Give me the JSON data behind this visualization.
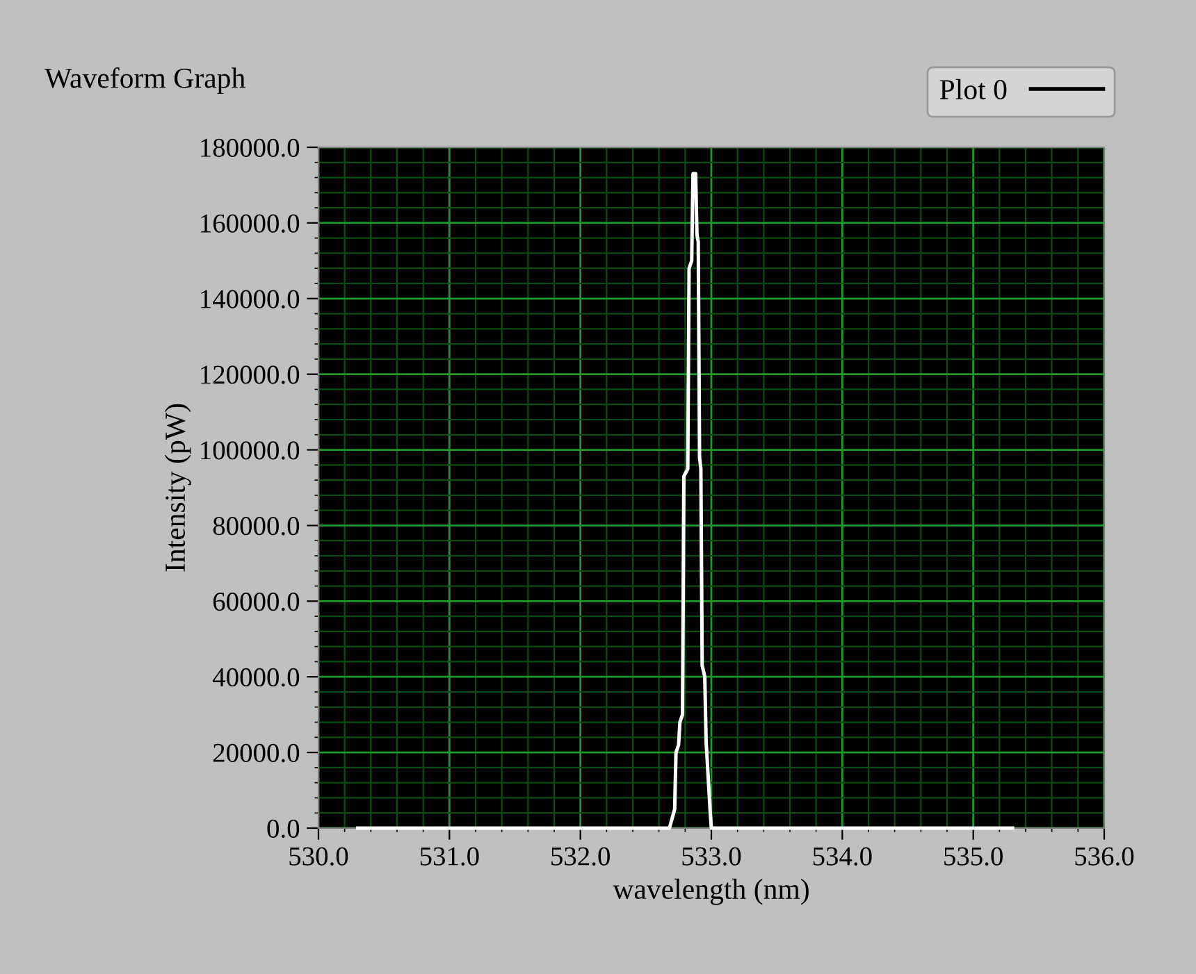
{
  "chart_data": {
    "type": "line",
    "title": "Waveform Graph",
    "xlabel": "wavelength (nm)",
    "ylabel": "Intensity (pW)",
    "series": [
      {
        "name": "Plot 0",
        "color": "#ffffff",
        "x": [
          530.3,
          531.0,
          532.0,
          532.6,
          532.68,
          532.72,
          532.73,
          532.75,
          532.76,
          532.78,
          532.79,
          532.82,
          532.83,
          532.85,
          532.86,
          532.88,
          532.89,
          532.9,
          532.91,
          532.92,
          532.93,
          532.95,
          532.96,
          532.99,
          533.0,
          533.5,
          534.5,
          535.3
        ],
        "values": [
          0,
          0,
          0,
          0,
          0,
          5000,
          20000,
          22000,
          28000,
          30000,
          93000,
          95000,
          148000,
          150000,
          173000,
          173000,
          157000,
          155000,
          98000,
          95000,
          43000,
          40000,
          23000,
          5000,
          0,
          0,
          0,
          0
        ]
      }
    ],
    "xlim": [
      530,
      536
    ],
    "xticks": [
      {
        "value": 530,
        "label": "530.0"
      },
      {
        "value": 530.2,
        "label": null
      },
      {
        "value": 530.4,
        "label": null
      },
      {
        "value": 530.6,
        "label": null
      },
      {
        "value": 530.8,
        "label": null
      },
      {
        "value": 531,
        "label": "531.0"
      },
      {
        "value": 531.2,
        "label": null
      },
      {
        "value": 531.4,
        "label": null
      },
      {
        "value": 531.6,
        "label": null
      },
      {
        "value": 531.8,
        "label": null
      },
      {
        "value": 532,
        "label": "532.0"
      },
      {
        "value": 532.2,
        "label": null
      },
      {
        "value": 532.4,
        "label": null
      },
      {
        "value": 532.6,
        "label": null
      },
      {
        "value": 532.8,
        "label": null
      },
      {
        "value": 533,
        "label": "533.0"
      },
      {
        "value": 533.2,
        "label": null
      },
      {
        "value": 533.4,
        "label": null
      },
      {
        "value": 533.6,
        "label": null
      },
      {
        "value": 533.8,
        "label": null
      },
      {
        "value": 534,
        "label": "534.0"
      },
      {
        "value": 534.2,
        "label": null
      },
      {
        "value": 534.4,
        "label": null
      },
      {
        "value": 534.6,
        "label": null
      },
      {
        "value": 534.8,
        "label": null
      },
      {
        "value": 535,
        "label": "535.0"
      },
      {
        "value": 535.2,
        "label": null
      },
      {
        "value": 535.4,
        "label": null
      },
      {
        "value": 535.6,
        "label": null
      },
      {
        "value": 535.8,
        "label": null
      },
      {
        "value": 536,
        "label": "536.0"
      }
    ],
    "ylim": [
      0,
      180000
    ],
    "yticks": [
      {
        "value": 0,
        "label": "0.0"
      },
      {
        "value": 4000,
        "label": null
      },
      {
        "value": 8000,
        "label": null
      },
      {
        "value": 12000,
        "label": null
      },
      {
        "value": 16000,
        "label": null
      },
      {
        "value": 20000,
        "label": "20000.0"
      },
      {
        "value": 24000,
        "label": null
      },
      {
        "value": 28000,
        "label": null
      },
      {
        "value": 32000,
        "label": null
      },
      {
        "value": 36000,
        "label": null
      },
      {
        "value": 40000,
        "label": "40000.0"
      },
      {
        "value": 44000,
        "label": null
      },
      {
        "value": 48000,
        "label": null
      },
      {
        "value": 52000,
        "label": null
      },
      {
        "value": 56000,
        "label": null
      },
      {
        "value": 60000,
        "label": "60000.0"
      },
      {
        "value": 64000,
        "label": null
      },
      {
        "value": 68000,
        "label": null
      },
      {
        "value": 72000,
        "label": null
      },
      {
        "value": 76000,
        "label": null
      },
      {
        "value": 80000,
        "label": "80000.0"
      },
      {
        "value": 84000,
        "label": null
      },
      {
        "value": 88000,
        "label": null
      },
      {
        "value": 92000,
        "label": null
      },
      {
        "value": 96000,
        "label": null
      },
      {
        "value": 100000,
        "label": "100000.0"
      },
      {
        "value": 104000,
        "label": null
      },
      {
        "value": 108000,
        "label": null
      },
      {
        "value": 112000,
        "label": null
      },
      {
        "value": 116000,
        "label": null
      },
      {
        "value": 120000,
        "label": "120000.0"
      },
      {
        "value": 124000,
        "label": null
      },
      {
        "value": 128000,
        "label": null
      },
      {
        "value": 132000,
        "label": null
      },
      {
        "value": 136000,
        "label": null
      },
      {
        "value": 140000,
        "label": "140000.0"
      },
      {
        "value": 144000,
        "label": null
      },
      {
        "value": 148000,
        "label": null
      },
      {
        "value": 152000,
        "label": null
      },
      {
        "value": 156000,
        "label": null
      },
      {
        "value": 160000,
        "label": "160000.0"
      },
      {
        "value": 164000,
        "label": null
      },
      {
        "value": 168000,
        "label": null
      },
      {
        "value": 172000,
        "label": null
      },
      {
        "value": 176000,
        "label": null
      },
      {
        "value": 180000,
        "label": "180000.0"
      }
    ],
    "grid": true,
    "legend": "top right",
    "marker": "none",
    "line_style": "solid"
  }
}
